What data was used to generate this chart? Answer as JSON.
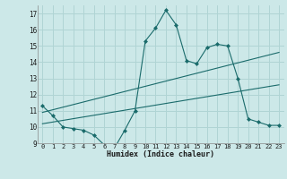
{
  "title": "",
  "xlabel": "Humidex (Indice chaleur)",
  "ylabel": "",
  "background_color": "#cce8e8",
  "grid_color": "#b0d4d4",
  "line_color": "#1a6b6b",
  "xlim": [
    -0.5,
    23.5
  ],
  "ylim": [
    9,
    17.5
  ],
  "yticks": [
    9,
    10,
    11,
    12,
    13,
    14,
    15,
    16,
    17
  ],
  "xticks": [
    0,
    1,
    2,
    3,
    4,
    5,
    6,
    7,
    8,
    9,
    10,
    11,
    12,
    13,
    14,
    15,
    16,
    17,
    18,
    19,
    20,
    21,
    22,
    23
  ],
  "xtick_labels": [
    "0",
    "1",
    "2",
    "3",
    "4",
    "5",
    "6",
    "7",
    "8",
    "9",
    "10",
    "11",
    "12",
    "13",
    "14",
    "15",
    "16",
    "17",
    "18",
    "19",
    "20",
    "21",
    "22",
    "23"
  ],
  "series1_x": [
    0,
    1,
    2,
    3,
    4,
    5,
    6,
    7,
    8,
    9,
    10,
    11,
    12,
    13,
    14,
    15,
    16,
    17,
    18,
    19,
    20,
    21,
    22,
    23
  ],
  "series1_y": [
    11.3,
    10.7,
    10.0,
    9.9,
    9.8,
    9.5,
    8.9,
    8.7,
    9.8,
    11.0,
    15.3,
    16.1,
    17.2,
    16.3,
    14.1,
    13.9,
    14.9,
    15.1,
    15.0,
    13.0,
    10.5,
    10.3,
    10.1,
    10.1
  ],
  "series2_x": [
    0,
    23
  ],
  "series2_y": [
    10.2,
    12.6
  ],
  "series3_x": [
    0,
    23
  ],
  "series3_y": [
    10.9,
    14.6
  ]
}
